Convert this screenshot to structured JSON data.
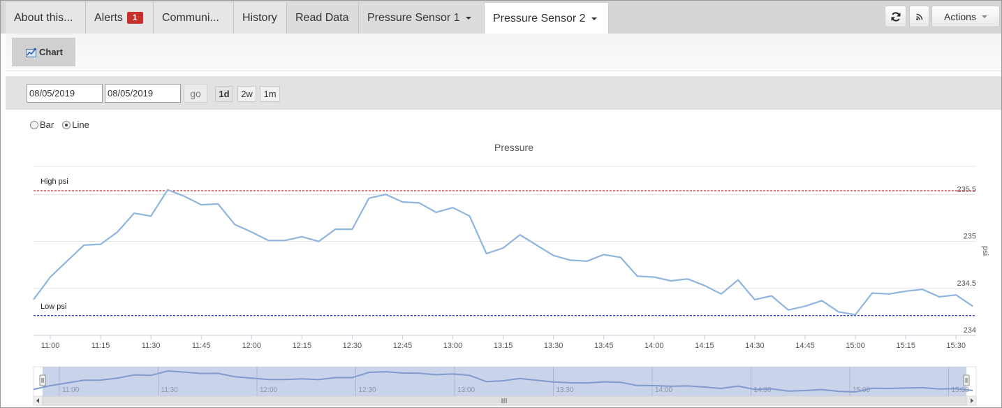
{
  "tabs": [
    {
      "label": "About this...",
      "name": "tab-about"
    },
    {
      "label": "Alerts",
      "name": "tab-alerts",
      "badge": "1"
    },
    {
      "label": "Communi...",
      "name": "tab-communications"
    },
    {
      "label": "History",
      "name": "tab-history"
    },
    {
      "label": "Read Data",
      "name": "tab-read-data"
    },
    {
      "label": "Pressure Sensor 1",
      "name": "tab-pressure-sensor-1",
      "dropdown": true
    },
    {
      "label": "Pressure Sensor 2",
      "name": "tab-pressure-sensor-2",
      "dropdown": true,
      "active": true
    }
  ],
  "toolbar": {
    "refresh_icon": "refresh-icon",
    "rss_icon": "rss-icon",
    "actions_label": "Actions",
    "chart_label": "Chart",
    "chart_icon": "chart-icon"
  },
  "date_range": {
    "start": "08/05/2019",
    "end": "08/05/2019",
    "go_label": "go",
    "ranges": [
      "1d",
      "2w",
      "1m"
    ],
    "selected_range": "1d"
  },
  "chart_options": {
    "types": [
      "Bar",
      "Line"
    ],
    "selected": "Line"
  },
  "chart_data": {
    "type": "line",
    "title": "Pressure",
    "ylabel": "psi",
    "xlabel": "",
    "ylim": [
      234.0,
      235.8
    ],
    "yticks": [
      "234",
      "234.5",
      "235",
      "235.5"
    ],
    "xticks": [
      "11:00",
      "11:15",
      "11:30",
      "11:45",
      "12:00",
      "12:15",
      "12:30",
      "12:45",
      "13:00",
      "13:15",
      "13:30",
      "13:45",
      "14:00",
      "14:15",
      "14:30",
      "14:45",
      "15:00",
      "15:15",
      "15:30"
    ],
    "thresholds": [
      {
        "label": "High psi",
        "value": 235.54,
        "color": "#cc0000"
      },
      {
        "label": "Low psi",
        "value": 234.21,
        "color": "#0000cc"
      }
    ],
    "series": [
      {
        "color": "#8fb5df",
        "x": [
          "10:55",
          "11:00",
          "11:05",
          "11:10",
          "11:15",
          "11:20",
          "11:25",
          "11:30",
          "11:35",
          "11:40",
          "11:45",
          "11:50",
          "11:55",
          "12:00",
          "12:05",
          "12:10",
          "12:15",
          "12:20",
          "12:25",
          "12:30",
          "12:35",
          "12:40",
          "12:45",
          "12:50",
          "12:55",
          "13:00",
          "13:05",
          "13:10",
          "13:15",
          "13:20",
          "13:25",
          "13:30",
          "13:35",
          "13:40",
          "13:45",
          "13:50",
          "13:55",
          "14:00",
          "14:05",
          "14:10",
          "14:15",
          "14:20",
          "14:25",
          "14:30",
          "14:35",
          "14:40",
          "14:45",
          "14:50",
          "14:55",
          "15:00",
          "15:05",
          "15:10",
          "15:15",
          "15:20",
          "15:25",
          "15:30",
          "15:35"
        ],
        "values": [
          234.38,
          234.62,
          234.79,
          234.96,
          234.97,
          235.1,
          235.3,
          235.27,
          235.55,
          235.48,
          235.39,
          235.4,
          235.18,
          235.1,
          235.01,
          235.01,
          235.05,
          235.0,
          235.13,
          235.13,
          235.46,
          235.5,
          235.42,
          235.41,
          235.31,
          235.36,
          235.27,
          234.87,
          234.93,
          235.07,
          234.96,
          234.85,
          234.8,
          234.79,
          234.86,
          234.83,
          234.63,
          234.62,
          234.58,
          234.6,
          234.53,
          234.44,
          234.59,
          234.38,
          234.42,
          234.27,
          234.31,
          234.37,
          234.25,
          234.22,
          234.45,
          234.44,
          234.47,
          234.49,
          234.41,
          234.43,
          234.31
        ]
      }
    ],
    "navigator_xticks": [
      "11:00",
      "11:30",
      "12:00",
      "12:30",
      "13:00",
      "13:30",
      "14:00",
      "14:30",
      "15:00",
      "15:30"
    ]
  }
}
